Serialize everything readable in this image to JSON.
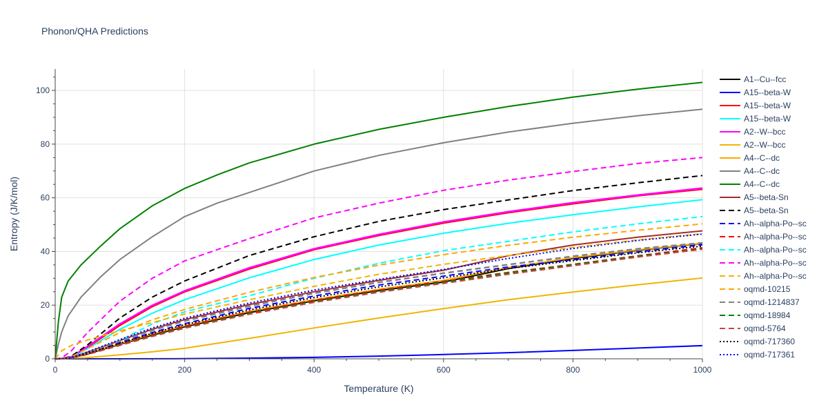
{
  "chart_data": {
    "type": "line",
    "title": "Phonon/QHA Predictions",
    "xlabel": "Temperature (K)",
    "ylabel": "Entropy (J/K/mol)",
    "xlim": [
      0,
      1000
    ],
    "ylim": [
      0,
      108
    ],
    "xticks": [
      0,
      200,
      400,
      600,
      800,
      1000
    ],
    "yticks": [
      0,
      20,
      40,
      60,
      80,
      100
    ],
    "grid": true,
    "legend_position": "right",
    "series": [
      {
        "name": "A1--Cu--fcc",
        "color": "#000000",
        "dash": "solid",
        "width": 2,
        "x": [
          0,
          10,
          25,
          50,
          100,
          150,
          200,
          300,
          400,
          500,
          600,
          700,
          800,
          900,
          1000
        ],
        "y": [
          0,
          0.05,
          0.4,
          1.8,
          5.4,
          8.8,
          11.9,
          17.2,
          21.6,
          25.4,
          28.6,
          33.6,
          37.4,
          40.4,
          43.0
        ]
      },
      {
        "name": "A15--beta-W",
        "color": "#0000ff",
        "dash": "solid",
        "width": 2,
        "x": [
          0,
          100,
          200,
          300,
          400,
          500,
          600,
          700,
          800,
          900,
          1000
        ],
        "y": [
          0,
          0.0,
          0.05,
          0.25,
          0.55,
          1.0,
          1.6,
          2.3,
          3.1,
          4.0,
          4.9
        ]
      },
      {
        "name": "A15--beta-W",
        "color": "#ff0000",
        "dash": "solid",
        "width": 2.5,
        "x": [
          0,
          10,
          25,
          50,
          100,
          150,
          200,
          300,
          400,
          500,
          600,
          700,
          800,
          900,
          1000
        ],
        "y": [
          0,
          0.05,
          0.6,
          4.3,
          12.5,
          19.5,
          25.0,
          33.5,
          40.7,
          46.0,
          50.6,
          54.5,
          57.8,
          60.8,
          63.2
        ]
      },
      {
        "name": "A15--beta-W",
        "color": "#00ffff",
        "dash": "solid",
        "width": 2,
        "x": [
          0,
          10,
          25,
          50,
          100,
          150,
          200,
          300,
          400,
          500,
          600,
          700,
          800,
          900,
          1000
        ],
        "y": [
          0,
          0.05,
          0.5,
          3.8,
          11.0,
          17.0,
          22.0,
          30.2,
          37.0,
          42.4,
          46.8,
          50.5,
          53.7,
          56.6,
          59.3
        ]
      },
      {
        "name": "A2--W--bcc",
        "color": "#ff00ff",
        "dash": "solid",
        "width": 2.5,
        "x": [
          0,
          10,
          25,
          50,
          100,
          150,
          200,
          300,
          400,
          500,
          600,
          700,
          800,
          900,
          1000
        ],
        "y": [
          0,
          0.05,
          0.7,
          4.6,
          13.0,
          19.9,
          25.3,
          33.9,
          41.0,
          46.3,
          51.0,
          54.8,
          58.2,
          61.0,
          63.6
        ]
      },
      {
        "name": "A2--W--bcc",
        "color": "#f0b400",
        "dash": "solid",
        "width": 2,
        "x": [
          0,
          25,
          50,
          100,
          150,
          200,
          300,
          400,
          500,
          600,
          700,
          800,
          900,
          1000
        ],
        "y": [
          0,
          0.1,
          0.5,
          1.5,
          2.6,
          3.9,
          7.6,
          11.5,
          15.2,
          18.7,
          22.0,
          24.9,
          27.6,
          30.1
        ]
      },
      {
        "name": "A4--C--dc",
        "color": "#ffa500",
        "dash": "solid",
        "width": 2,
        "x": [
          0,
          10,
          25,
          50,
          100,
          150,
          200,
          300,
          400,
          500,
          600,
          700,
          800,
          900,
          1000
        ],
        "y": [
          0,
          0.05,
          0.45,
          2.0,
          5.6,
          9.2,
          12.3,
          17.7,
          22.0,
          25.9,
          29.2,
          34.0,
          37.7,
          40.6,
          43.1
        ]
      },
      {
        "name": "A4--C--dc",
        "color": "#808080",
        "dash": "solid",
        "width": 2,
        "x": [
          0,
          5,
          10,
          20,
          40,
          70,
          100,
          150,
          200,
          250,
          300,
          400,
          500,
          600,
          700,
          800,
          900,
          1000
        ],
        "y": [
          0,
          5.5,
          10.0,
          16.0,
          23.0,
          30.5,
          37.0,
          45.5,
          53.0,
          58.0,
          62.0,
          70.0,
          75.8,
          80.5,
          84.5,
          87.8,
          90.6,
          93.0
        ]
      },
      {
        "name": "A4--C--dc",
        "color": "#008000",
        "dash": "solid",
        "width": 2,
        "x": [
          0,
          5,
          10,
          20,
          40,
          70,
          100,
          150,
          200,
          250,
          300,
          400,
          500,
          600,
          700,
          800,
          900,
          1000
        ],
        "y": [
          0,
          14.0,
          23.0,
          29.0,
          35.0,
          42.0,
          48.5,
          57.0,
          63.5,
          68.5,
          73.0,
          80.0,
          85.5,
          90.0,
          94.0,
          97.5,
          100.5,
          103.0
        ]
      },
      {
        "name": "A5--beta-Sn",
        "color": "#a52a2a",
        "dash": "solid",
        "width": 2,
        "x": [
          0,
          10,
          25,
          50,
          100,
          150,
          200,
          300,
          400,
          500,
          600,
          700,
          800,
          900,
          1000
        ],
        "y": [
          0,
          0.05,
          0.5,
          2.5,
          6.8,
          11.0,
          14.6,
          20.2,
          25.0,
          29.2,
          33.0,
          38.4,
          42.4,
          45.3,
          47.7
        ]
      },
      {
        "name": "A5--beta-Sn",
        "color": "#000000",
        "dash": "dash",
        "width": 2,
        "x": [
          0,
          10,
          25,
          50,
          100,
          150,
          200,
          300,
          400,
          500,
          600,
          700,
          800,
          900,
          1000
        ],
        "y": [
          0,
          0.1,
          1.0,
          5.2,
          15.2,
          23.0,
          29.0,
          38.5,
          45.5,
          51.2,
          55.6,
          59.2,
          62.7,
          65.6,
          68.3
        ]
      },
      {
        "name": "Ah--alpha-Po--sc",
        "color": "#0000ff",
        "dash": "dash",
        "width": 2,
        "x": [
          0,
          10,
          25,
          50,
          100,
          150,
          200,
          300,
          400,
          500,
          600,
          700,
          800,
          900,
          1000
        ],
        "y": [
          0,
          0.05,
          0.45,
          2.1,
          6.0,
          9.8,
          13.1,
          18.8,
          23.4,
          27.5,
          30.8,
          34.2,
          36.9,
          39.8,
          42.5
        ]
      },
      {
        "name": "Ah--alpha-Po--sc",
        "color": "#ff0000",
        "dash": "dash",
        "width": 2,
        "x": [
          0,
          10,
          25,
          50,
          100,
          150,
          200,
          300,
          400,
          500,
          600,
          700,
          800,
          900,
          1000
        ],
        "y": [
          0,
          0.05,
          0.4,
          1.9,
          5.5,
          9.0,
          12.1,
          17.4,
          21.8,
          25.6,
          28.9,
          32.2,
          35.2,
          38.4,
          41.4
        ]
      },
      {
        "name": "Ah--alpha-Po--sc",
        "color": "#00ffff",
        "dash": "dash",
        "width": 2,
        "x": [
          0,
          10,
          25,
          50,
          100,
          150,
          200,
          300,
          400,
          500,
          600,
          700,
          800,
          900,
          1000
        ],
        "y": [
          0,
          0.05,
          0.5,
          2.3,
          6.8,
          13.0,
          17.5,
          23.5,
          30.0,
          35.6,
          40.3,
          43.8,
          47.3,
          50.3,
          53.0
        ]
      },
      {
        "name": "Ah--alpha-Po--sc",
        "color": "#ff00ff",
        "dash": "dash",
        "width": 2,
        "x": [
          0,
          10,
          25,
          50,
          100,
          150,
          200,
          300,
          400,
          500,
          600,
          700,
          800,
          900,
          1000
        ],
        "y": [
          0,
          0.3,
          3.0,
          9.8,
          21.5,
          30.0,
          36.5,
          44.8,
          52.5,
          58.0,
          62.8,
          66.6,
          69.8,
          72.8,
          75.0
        ]
      },
      {
        "name": "Ah--alpha-Po--sc",
        "color": "#f0b400",
        "dash": "dash",
        "width": 2,
        "x": [
          0,
          10,
          25,
          50,
          100,
          150,
          200,
          300,
          400,
          500,
          600,
          700,
          800,
          900,
          1000
        ],
        "y": [
          0,
          3.0,
          5.0,
          7.0,
          10.5,
          13.5,
          16.7,
          22.0,
          27.0,
          31.5,
          35.2,
          38.5,
          41.5,
          44.3,
          46.6
        ]
      },
      {
        "name": "oqmd-10215",
        "color": "#ffa500",
        "dash": "dash",
        "width": 2,
        "x": [
          0,
          10,
          25,
          50,
          100,
          150,
          200,
          300,
          400,
          500,
          600,
          700,
          800,
          900,
          1000
        ],
        "y": [
          0,
          0.1,
          0.8,
          3.8,
          9.8,
          14.5,
          18.4,
          24.8,
          30.3,
          34.9,
          38.8,
          42.3,
          45.3,
          47.9,
          50.3
        ]
      },
      {
        "name": "oqmd-1214837",
        "color": "#808080",
        "dash": "dash",
        "width": 2.5,
        "x": [
          0,
          10,
          25,
          50,
          100,
          150,
          200,
          300,
          400,
          500,
          600,
          700,
          800,
          900,
          1000
        ],
        "y": [
          0,
          0.05,
          0.5,
          2.4,
          6.6,
          10.6,
          14.1,
          19.6,
          24.4,
          28.5,
          31.9,
          35.1,
          38.2,
          41.0,
          43.2
        ]
      },
      {
        "name": "oqmd-18984",
        "color": "#008000",
        "dash": "dash",
        "width": 2,
        "x": [
          0,
          10,
          25,
          50,
          100,
          150,
          200,
          300,
          400,
          500,
          600,
          700,
          800,
          900,
          1000
        ],
        "y": [
          0,
          0.05,
          0.35,
          1.7,
          5.2,
          8.6,
          11.7,
          17.0,
          21.4,
          25.2,
          28.6,
          32.0,
          35.1,
          38.2,
          41.0
        ]
      },
      {
        "name": "oqmd-5764",
        "color": "#d04040",
        "dash": "dash",
        "width": 2,
        "x": [
          0,
          10,
          25,
          50,
          100,
          150,
          200,
          300,
          400,
          500,
          600,
          700,
          800,
          900,
          1000
        ],
        "y": [
          0,
          0.05,
          0.35,
          1.6,
          5.0,
          8.3,
          11.4,
          16.6,
          21.0,
          24.8,
          28.1,
          31.5,
          34.7,
          37.9,
          40.8
        ]
      },
      {
        "name": "oqmd-717360",
        "color": "#000000",
        "dash": "dot",
        "width": 2,
        "x": [
          0,
          10,
          25,
          50,
          100,
          150,
          200,
          300,
          400,
          500,
          600,
          700,
          800,
          900,
          1000
        ],
        "y": [
          0,
          0.05,
          0.45,
          2.0,
          5.8,
          9.5,
          12.7,
          18.2,
          22.8,
          26.8,
          30.2,
          33.6,
          36.6,
          39.5,
          42.0
        ]
      },
      {
        "name": "oqmd-717361",
        "color": "#0000ff",
        "dash": "dot",
        "width": 2,
        "x": [
          0,
          10,
          25,
          50,
          100,
          150,
          200,
          300,
          400,
          500,
          600,
          700,
          800,
          900,
          1000
        ],
        "y": [
          0,
          0.05,
          0.5,
          2.6,
          7.2,
          11.5,
          15.1,
          20.8,
          25.6,
          29.6,
          33.3,
          37.4,
          41.1,
          44.1,
          46.5
        ]
      }
    ]
  }
}
